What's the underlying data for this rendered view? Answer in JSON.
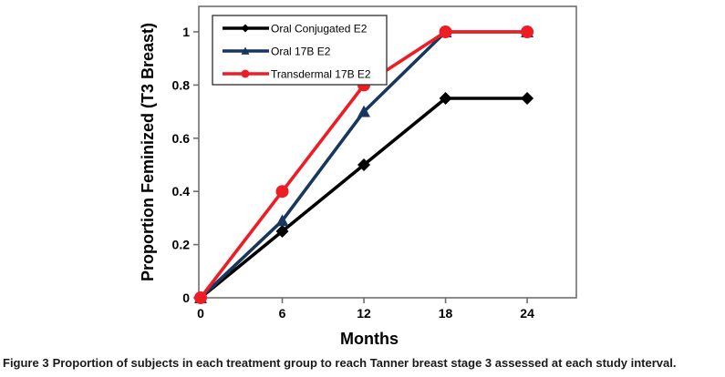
{
  "figure": {
    "caption_label": "Figure 3",
    "caption_text": "Proportion of subjects in each treatment group to reach Tanner breast stage 3 assessed at each study interval."
  },
  "chart_data": {
    "type": "line",
    "x": [
      0,
      6,
      12,
      18,
      24
    ],
    "series": [
      {
        "name": "Oral Conjugated E2",
        "color": "#000000",
        "marker": "diamond",
        "values": [
          0,
          0.25,
          0.5,
          0.75,
          0.75
        ]
      },
      {
        "name": "Oral 17B E2",
        "color": "#17375E",
        "marker": "triangle",
        "values": [
          0,
          0.29,
          0.7,
          1.0,
          1.0
        ]
      },
      {
        "name": "Transdermal 17B E2",
        "color": "#EE1C25",
        "marker": "circle",
        "values": [
          0,
          0.4,
          0.8,
          1.0,
          1.0
        ]
      }
    ],
    "xlabel": "Months",
    "ylabel": "Proportion Feminized (T3 Breast)",
    "xlim": [
      0,
      28
    ],
    "ylim": [
      0,
      1.1
    ],
    "xticks": [
      0,
      6,
      12,
      18,
      24
    ],
    "yticks": [
      0,
      0.2,
      0.4,
      0.6,
      0.8,
      1
    ],
    "grid": false,
    "legend_position": "top-left-inside",
    "frame_color": "#6e6e6e",
    "axis_text_color": "#000000"
  }
}
